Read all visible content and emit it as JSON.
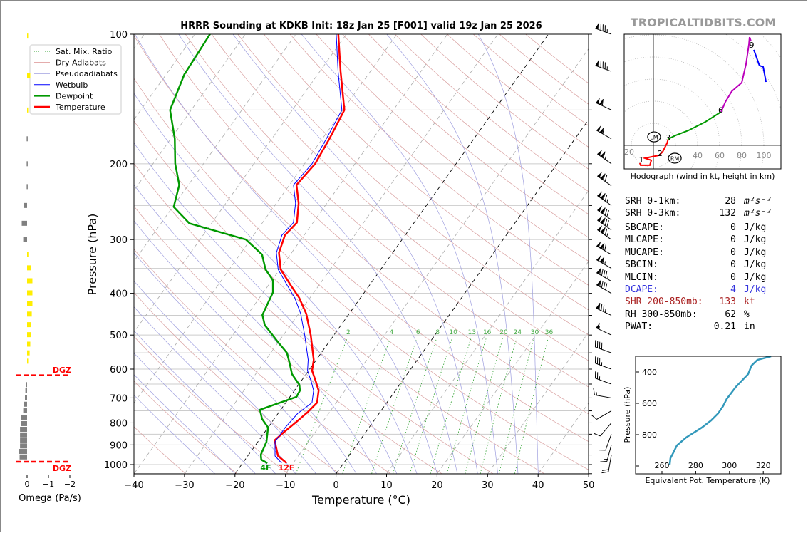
{
  "header": {
    "title": "HRRR Sounding at KDKB Init: 18z Jan 25 [F001] valid 19z Jan 25 2026",
    "brand": "TROPICALTIDBITS.COM"
  },
  "legend": {
    "items": [
      {
        "label": "Sat. Mix. Ratio",
        "color": "#2ca02c",
        "style": "dotted"
      },
      {
        "label": "Dry Adiabats",
        "color": "#e0a0a0",
        "style": "solid"
      },
      {
        "label": "Pseudoadiabats",
        "color": "#a0a0e0",
        "style": "solid"
      },
      {
        "label": "Wetbulb",
        "color": "#0000ff",
        "style": "solid"
      },
      {
        "label": "Dewpoint",
        "color": "#009900",
        "style": "thick"
      },
      {
        "label": "Temperature",
        "color": "#ff0000",
        "style": "thick"
      }
    ]
  },
  "chart_data": [
    {
      "type": "line",
      "name": "skew-t",
      "xlabel": "Temperature (°C)",
      "ylabel": "Pressure (hPa)",
      "xlim": [
        -40,
        50
      ],
      "ylim": [
        1050,
        100
      ],
      "xticks": [
        "−40",
        "−30",
        "−20",
        "−10",
        "0",
        "10",
        "20",
        "30",
        "40",
        "50"
      ],
      "xtick_values": [
        -40,
        -30,
        -20,
        -10,
        0,
        10,
        20,
        30,
        40,
        50
      ],
      "yticks": [
        "100",
        "200",
        "300",
        "400",
        "500",
        "600",
        "700",
        "800",
        "900",
        "1000"
      ],
      "ytick_values": [
        100,
        200,
        300,
        400,
        500,
        600,
        700,
        800,
        900,
        1000
      ],
      "mixing_ratio_labels": [
        "2",
        "4",
        "6",
        "8",
        "10",
        "13",
        "16",
        "20",
        "24",
        "30",
        "36"
      ],
      "mixing_ratio_values": [
        2,
        4,
        6,
        8,
        10,
        13,
        16,
        20,
        24,
        30,
        36
      ],
      "surface_dewpoint_label": "4F",
      "surface_temperature_label": "12F",
      "series": [
        {
          "name": "Temperature",
          "color": "#ff0000",
          "points": [
            [
              100,
              -61.6
            ],
            [
              122,
              -55.9
            ],
            [
              150,
              -49.7
            ],
            [
              175,
              -48.6
            ],
            [
              200,
              -47.9
            ],
            [
              224,
              -48.6
            ],
            [
              247,
              -45.6
            ],
            [
              274,
              -43.2
            ],
            [
              293,
              -43.8
            ],
            [
              322,
              -42.5
            ],
            [
              352,
              -39.8
            ],
            [
              383,
              -35.6
            ],
            [
              410,
              -32.1
            ],
            [
              446,
              -28.5
            ],
            [
              500,
              -24.6
            ],
            [
              571,
              -20.5
            ],
            [
              605,
              -19.3
            ],
            [
              640,
              -17.1
            ],
            [
              673,
              -15.2
            ],
            [
              718,
              -13.8
            ],
            [
              754,
              -14.3
            ],
            [
              796,
              -15.2
            ],
            [
              836,
              -16.1
            ],
            [
              878,
              -16.9
            ],
            [
              955,
              -14.0
            ],
            [
              992,
              -11.3
            ]
          ]
        },
        {
          "name": "Dewpoint",
          "color": "#009900",
          "points": [
            [
              100,
              -87.0
            ],
            [
              124,
              -86.4
            ],
            [
              150,
              -84.2
            ],
            [
              175,
              -79.2
            ],
            [
              200,
              -75.6
            ],
            [
              224,
              -71.8
            ],
            [
              252,
              -69.8
            ],
            [
              275,
              -64.4
            ],
            [
              300,
              -50.9
            ],
            [
              325,
              -45.6
            ],
            [
              352,
              -42.8
            ],
            [
              373,
              -39.8
            ],
            [
              398,
              -38.1
            ],
            [
              449,
              -37.0
            ],
            [
              474,
              -35.1
            ],
            [
              519,
              -30.1
            ],
            [
              550,
              -26.8
            ],
            [
              578,
              -25.0
            ],
            [
              616,
              -22.8
            ],
            [
              653,
              -19.8
            ],
            [
              673,
              -18.9
            ],
            [
              696,
              -18.7
            ],
            [
              746,
              -24.1
            ],
            [
              783,
              -22.4
            ],
            [
              820,
              -20.0
            ],
            [
              885,
              -18.3
            ],
            [
              948,
              -17.6
            ],
            [
              974,
              -16.8
            ],
            [
              992,
              -15.1
            ]
          ]
        },
        {
          "name": "Wetbulb",
          "color": "#0000ff",
          "points": [
            [
              100,
              -62.0
            ],
            [
              122,
              -56.4
            ],
            [
              150,
              -50.2
            ],
            [
              175,
              -49.2
            ],
            [
              200,
              -48.5
            ],
            [
              224,
              -49.2
            ],
            [
              247,
              -46.2
            ],
            [
              274,
              -43.9
            ],
            [
              293,
              -44.4
            ],
            [
              322,
              -43.0
            ],
            [
              352,
              -40.3
            ],
            [
              383,
              -36.3
            ],
            [
              410,
              -33.0
            ],
            [
              446,
              -29.6
            ],
            [
              500,
              -25.8
            ],
            [
              571,
              -21.6
            ],
            [
              605,
              -20.2
            ],
            [
              640,
              -18.0
            ],
            [
              673,
              -16.2
            ],
            [
              718,
              -14.8
            ],
            [
              760,
              -16.1
            ],
            [
              820,
              -16.6
            ],
            [
              885,
              -16.6
            ],
            [
              955,
              -14.6
            ],
            [
              992,
              -12.3
            ]
          ]
        }
      ],
      "wind_barbs": [
        {
          "p": 100,
          "kt": 95,
          "dir": 250
        },
        {
          "p": 122,
          "kt": 95,
          "dir": 250
        },
        {
          "p": 150,
          "kt": 110,
          "dir": 245
        },
        {
          "p": 175,
          "kt": 105,
          "dir": 240
        },
        {
          "p": 200,
          "kt": 115,
          "dir": 235
        },
        {
          "p": 225,
          "kt": 120,
          "dir": 235
        },
        {
          "p": 250,
          "kt": 125,
          "dir": 235
        },
        {
          "p": 270,
          "kt": 130,
          "dir": 235
        },
        {
          "p": 285,
          "kt": 130,
          "dir": 235
        },
        {
          "p": 300,
          "kt": 125,
          "dir": 235
        },
        {
          "p": 325,
          "kt": 120,
          "dir": 240
        },
        {
          "p": 350,
          "kt": 115,
          "dir": 240
        },
        {
          "p": 375,
          "kt": 95,
          "dir": 240
        },
        {
          "p": 400,
          "kt": 90,
          "dir": 240
        },
        {
          "p": 450,
          "kt": 85,
          "dir": 245
        },
        {
          "p": 500,
          "kt": 55,
          "dir": 245
        },
        {
          "p": 550,
          "kt": 40,
          "dir": 250
        },
        {
          "p": 600,
          "kt": 35,
          "dir": 250
        },
        {
          "p": 650,
          "kt": 25,
          "dir": 250
        },
        {
          "p": 700,
          "kt": 15,
          "dir": 260
        },
        {
          "p": 750,
          "kt": 10,
          "dir": 300
        },
        {
          "p": 800,
          "kt": 10,
          "dir": 320
        },
        {
          "p": 850,
          "kt": 10,
          "dir": 340
        },
        {
          "p": 900,
          "kt": 15,
          "dir": 345
        },
        {
          "p": 950,
          "kt": 20,
          "dir": 350
        }
      ]
    },
    {
      "type": "bar",
      "name": "omega",
      "xlabel": "Omega (Pa/s)",
      "xticks": [
        "0",
        "−1",
        "−2"
      ],
      "xtick_values": [
        0,
        -1,
        -2
      ],
      "dgz_label_top": "DGZ",
      "dgz_label_bottom": "DGZ",
      "dgz_pressures": [
        620,
        985
      ],
      "positive_color": "#808080",
      "negative_color": "#ffee00",
      "values": [
        [
          101,
          -0.05
        ],
        [
          125,
          -0.15
        ],
        [
          150,
          -0.05
        ],
        [
          175,
          0.02
        ],
        [
          200,
          0.02
        ],
        [
          226,
          0.02
        ],
        [
          250,
          0.15
        ],
        [
          275,
          0.25
        ],
        [
          300,
          0.18
        ],
        [
          325,
          -0.06
        ],
        [
          349,
          -0.2
        ],
        [
          374,
          -0.25
        ],
        [
          399,
          -0.25
        ],
        [
          423,
          -0.25
        ],
        [
          447,
          -0.22
        ],
        [
          473,
          -0.2
        ],
        [
          499,
          -0.2
        ],
        [
          525,
          -0.15
        ],
        [
          550,
          -0.12
        ],
        [
          575,
          -0.05
        ],
        [
          652,
          0.05
        ],
        [
          673,
          0.08
        ],
        [
          699,
          0.1
        ],
        [
          724,
          0.14
        ],
        [
          750,
          0.18
        ],
        [
          776,
          0.27
        ],
        [
          803,
          0.3
        ],
        [
          828,
          0.33
        ],
        [
          853,
          0.33
        ],
        [
          879,
          0.33
        ],
        [
          905,
          0.33
        ],
        [
          932,
          0.37
        ],
        [
          960,
          0.35
        ]
      ]
    },
    {
      "type": "line",
      "name": "hodograph",
      "caption": "Hodograph (wind in kt, height in km)",
      "ring_labels": [
        "20",
        "40",
        "60",
        "80",
        "100"
      ],
      "ring_values": [
        20,
        40,
        60,
        80,
        100
      ],
      "segments": [
        {
          "color": "#ff0000",
          "points": [
            [
              -12.3,
              -16
            ],
            [
              -11.6,
              -18
            ],
            [
              -3.2,
              -18
            ],
            [
              -1.9,
              -13.5
            ],
            [
              -7.7,
              -11.6
            ],
            [
              5.2,
              -9
            ],
            [
              8.4,
              -5.8
            ],
            [
              12.3,
              1.9
            ],
            [
              13.5,
              5.8
            ]
          ]
        },
        {
          "color": "#009900",
          "points": [
            [
              13.5,
              5.8
            ],
            [
              20,
              9
            ],
            [
              31.6,
              13.5
            ],
            [
              47.1,
              21.3
            ],
            [
              61.3,
              30.3
            ]
          ]
        },
        {
          "color": "#bb00bb",
          "points": [
            [
              61.3,
              30.3
            ],
            [
              65.2,
              39.4
            ],
            [
              71,
              49
            ],
            [
              80,
              56.8
            ],
            [
              83.9,
              73.5
            ],
            [
              86.5,
              91.6
            ],
            [
              87.1,
              98
            ],
            [
              88.4,
              94.2
            ]
          ]
        },
        {
          "color": "#0000ff",
          "points": [
            [
              91,
              86.5
            ],
            [
              96,
              72.3
            ],
            [
              99.4,
              71
            ],
            [
              102,
              57.4
            ]
          ]
        }
      ],
      "height_labels": [
        {
          "label": "1",
          "u": -11,
          "v": -13
        },
        {
          "label": "2",
          "u": 6,
          "v": -7
        },
        {
          "label": "3",
          "u": 13.5,
          "v": 7
        },
        {
          "label": "6",
          "u": 61,
          "v": 32
        },
        {
          "label": "9",
          "u": 89,
          "v": 91
        }
      ],
      "storm_motion": [
        {
          "label": "LM",
          "u": 0.6,
          "v": 7.7
        },
        {
          "label": "RM",
          "u": 19.4,
          "v": -11.6
        }
      ]
    },
    {
      "type": "line",
      "name": "theta-e",
      "xlabel": "Equivalent Pot. Temperature (K)",
      "ylabel": "Pressure (hPa)",
      "xticks": [
        "260",
        "280",
        "300",
        "320"
      ],
      "xtick_values": [
        260,
        280,
        300,
        320
      ],
      "yticks": [
        "400",
        "600",
        "800"
      ],
      "ytick_values": [
        400,
        600,
        800
      ],
      "color": "#3399bb",
      "points": [
        [
          264.6,
          991
        ],
        [
          265,
          950
        ],
        [
          266.8,
          914
        ],
        [
          268.9,
          868
        ],
        [
          274.3,
          818
        ],
        [
          283.6,
          755
        ],
        [
          289.1,
          709
        ],
        [
          293.3,
          664
        ],
        [
          296.2,
          618
        ],
        [
          298.3,
          573
        ],
        [
          303.8,
          495
        ],
        [
          311,
          414
        ],
        [
          313.1,
          359
        ],
        [
          316.5,
          323
        ],
        [
          324.6,
          300
        ]
      ]
    }
  ],
  "stats": [
    {
      "label": "SRH 0-1km:",
      "value": "28",
      "unit": "m²s⁻²",
      "color": "#000000"
    },
    {
      "label": "SRH 0-3km:",
      "value": "132",
      "unit": "m²s⁻²",
      "color": "#000000"
    },
    {
      "label": "SBCAPE:",
      "value": "0",
      "unit": "J/kg",
      "color": "#000000"
    },
    {
      "label": "MLCAPE:",
      "value": "0",
      "unit": "J/kg",
      "color": "#000000"
    },
    {
      "label": "MUCAPE:",
      "value": "0",
      "unit": "J/kg",
      "color": "#000000"
    },
    {
      "label": "SBCIN:",
      "value": "0",
      "unit": "J/kg",
      "color": "#000000"
    },
    {
      "label": "MLCIN:",
      "value": "0",
      "unit": "J/kg",
      "color": "#000000"
    },
    {
      "label": "DCAPE:",
      "value": "4",
      "unit": "J/kg",
      "color": "#3333dd"
    },
    {
      "label": "SHR 200-850mb:",
      "value": "133",
      "unit": "kt",
      "color": "#aa2222"
    },
    {
      "label": "RH 300-850mb:",
      "value": "62",
      "unit": "%",
      "color": "#000000"
    },
    {
      "label": "PWAT:",
      "value": "0.21",
      "unit": "in",
      "color": "#000000"
    }
  ]
}
